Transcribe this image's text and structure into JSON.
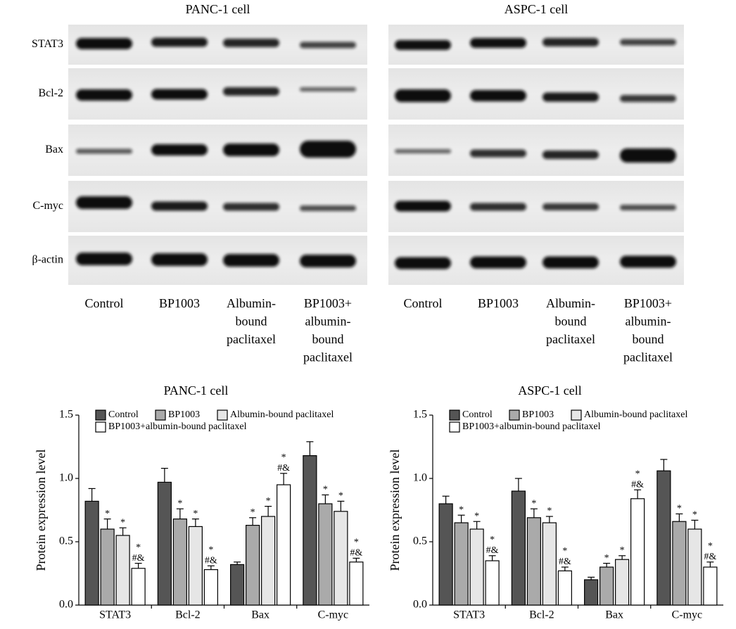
{
  "row_labels": [
    "STAT3",
    "Bcl-2",
    "Bax",
    "C-myc",
    "β-actin"
  ],
  "blots": [
    {
      "title": "PANC-1 cell",
      "lanes": [
        [
          "Control"
        ],
        [
          "BP1003"
        ],
        [
          "Albumin-",
          "bound",
          "paclitaxel"
        ],
        [
          "BP1003+",
          "albumin-",
          "bound",
          "paclitaxel"
        ]
      ]
    },
    {
      "title": "ASPC-1 cell",
      "lanes": [
        [
          "Control"
        ],
        [
          "BP1003"
        ],
        [
          "Albumin-",
          "bound",
          "paclitaxel"
        ],
        [
          "BP1003+",
          "albumin-",
          "bound",
          "paclitaxel"
        ]
      ]
    }
  ],
  "chart_data": [
    {
      "type": "bar",
      "title": "PANC-1 cell",
      "ylabel": "Protein expression level",
      "categories": [
        "STAT3",
        "Bcl-2",
        "Bax",
        "C-myc"
      ],
      "ylim": [
        0,
        1.5
      ],
      "yticks": [
        {
          "value": 0,
          "label": "0.0"
        },
        {
          "value": 0.5,
          "label": "0.5"
        },
        {
          "value": 1,
          "label": "1.0"
        },
        {
          "value": 1.5,
          "label": "1.5"
        }
      ],
      "series": [
        {
          "name": "Control",
          "color": "#555555",
          "values": [
            0.82,
            0.97,
            0.32,
            1.18
          ],
          "errors": [
            0.1,
            0.11,
            0.02,
            0.11
          ]
        },
        {
          "name": "BP1003",
          "color": "#aaaaaa",
          "values": [
            0.6,
            0.68,
            0.63,
            0.8
          ],
          "errors": [
            0.08,
            0.08,
            0.06,
            0.07
          ],
          "annotations": [
            [
              "*"
            ],
            [
              "*"
            ],
            [
              "*"
            ],
            [
              "*"
            ]
          ]
        },
        {
          "name": "Albumin-bound paclitaxel",
          "color": "#e6e6e6",
          "values": [
            0.55,
            0.62,
            0.7,
            0.74
          ],
          "errors": [
            0.06,
            0.06,
            0.08,
            0.08
          ],
          "annotations": [
            [
              "*"
            ],
            [
              "*"
            ],
            [
              "*"
            ],
            [
              "*"
            ]
          ]
        },
        {
          "name": "BP1003+albumin-bound paclitaxel",
          "color": "#ffffff",
          "values": [
            0.29,
            0.28,
            0.95,
            0.34
          ],
          "errors": [
            0.04,
            0.03,
            0.09,
            0.03
          ],
          "annotations": [
            [
              "*",
              "#&"
            ],
            [
              "*",
              "#&"
            ],
            [
              "*",
              "#&"
            ],
            [
              "*",
              "#&"
            ]
          ]
        }
      ]
    },
    {
      "type": "bar",
      "title": "ASPC-1 cell",
      "ylabel": "Protein expression level",
      "categories": [
        "STAT3",
        "Bcl-2",
        "Bax",
        "C-myc"
      ],
      "ylim": [
        0,
        1.5
      ],
      "yticks": [
        {
          "value": 0,
          "label": "0.0"
        },
        {
          "value": 0.5,
          "label": "0.5"
        },
        {
          "value": 1,
          "label": "1.0"
        },
        {
          "value": 1.5,
          "label": "1.5"
        }
      ],
      "series": [
        {
          "name": "Control",
          "color": "#555555",
          "values": [
            0.8,
            0.9,
            0.2,
            1.06
          ],
          "errors": [
            0.06,
            0.1,
            0.02,
            0.09
          ]
        },
        {
          "name": "BP1003",
          "color": "#aaaaaa",
          "values": [
            0.65,
            0.69,
            0.3,
            0.66
          ],
          "errors": [
            0.06,
            0.07,
            0.03,
            0.06
          ],
          "annotations": [
            [
              "*"
            ],
            [
              "*"
            ],
            [
              "*"
            ],
            [
              "*"
            ]
          ]
        },
        {
          "name": "Albumin-bound paclitaxel",
          "color": "#e6e6e6",
          "values": [
            0.6,
            0.65,
            0.36,
            0.6
          ],
          "errors": [
            0.06,
            0.05,
            0.03,
            0.07
          ],
          "annotations": [
            [
              "*"
            ],
            [
              "*"
            ],
            [
              "*"
            ],
            [
              "*"
            ]
          ]
        },
        {
          "name": "BP1003+albumin-bound paclitaxel",
          "color": "#ffffff",
          "values": [
            0.35,
            0.27,
            0.84,
            0.3
          ],
          "errors": [
            0.04,
            0.03,
            0.07,
            0.04
          ],
          "annotations": [
            [
              "*",
              "#&"
            ],
            [
              "*",
              "#&"
            ],
            [
              "*",
              "#&"
            ],
            [
              "*",
              "#&"
            ]
          ]
        }
      ]
    }
  ]
}
